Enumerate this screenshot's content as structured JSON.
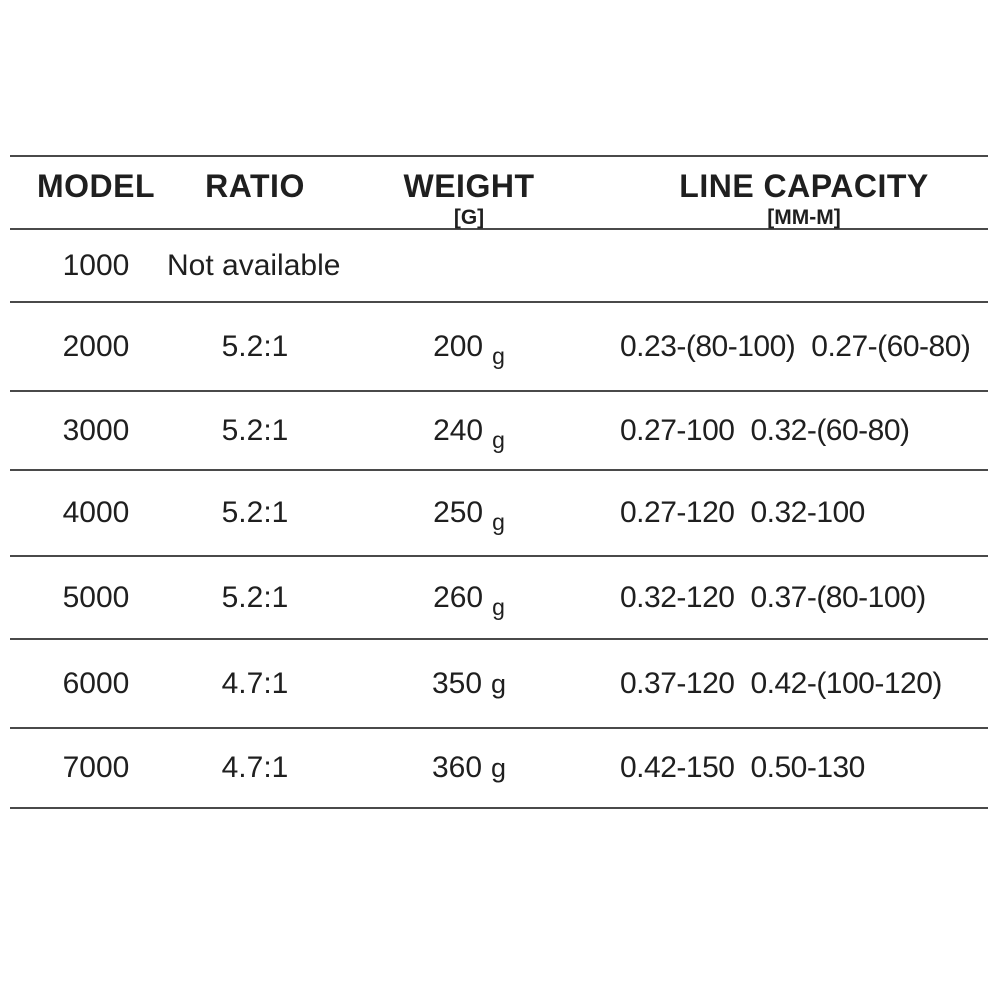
{
  "colors": {
    "background": "#ffffff",
    "text": "#1f1f1f",
    "rule_line": "#4a4a4a"
  },
  "table": {
    "columns": [
      {
        "label": "MODEL",
        "sub": ""
      },
      {
        "label": "RATIO",
        "sub": ""
      },
      {
        "label": "WEIGHT",
        "sub": "[G]"
      },
      {
        "label": "LINE CAPACITY",
        "sub": "[MM-M]"
      }
    ],
    "rows": [
      {
        "model": "1000",
        "note": "Not available"
      },
      {
        "model": "2000",
        "ratio": "5.2:1",
        "weight_value": "200",
        "weight_unit": "g",
        "capacity": [
          "0.23-(80-100)",
          "0.27-(60-80)"
        ]
      },
      {
        "model": "3000",
        "ratio": "5.2:1",
        "weight_value": "240",
        "weight_unit": "g",
        "capacity": [
          "0.27-100",
          "0.32-(60-80)"
        ]
      },
      {
        "model": "4000",
        "ratio": "5.2:1",
        "weight_value": "250",
        "weight_unit": "g",
        "capacity": [
          "0.27-120",
          "0.32-100"
        ]
      },
      {
        "model": "5000",
        "ratio": "5.2:1",
        "weight_value": "260",
        "weight_unit": "g",
        "capacity": [
          "0.32-120",
          "0.37-(80-100)"
        ]
      },
      {
        "model": "6000",
        "ratio": "4.7:1",
        "weight_value": "350",
        "weight_unit": "g",
        "capacity": [
          "0.37-120",
          "0.42-(100-120)"
        ]
      },
      {
        "model": "7000",
        "ratio": "4.7:1",
        "weight_value": "360",
        "weight_unit": "g",
        "capacity": [
          "0.42-150",
          "0.50-130"
        ]
      }
    ]
  }
}
